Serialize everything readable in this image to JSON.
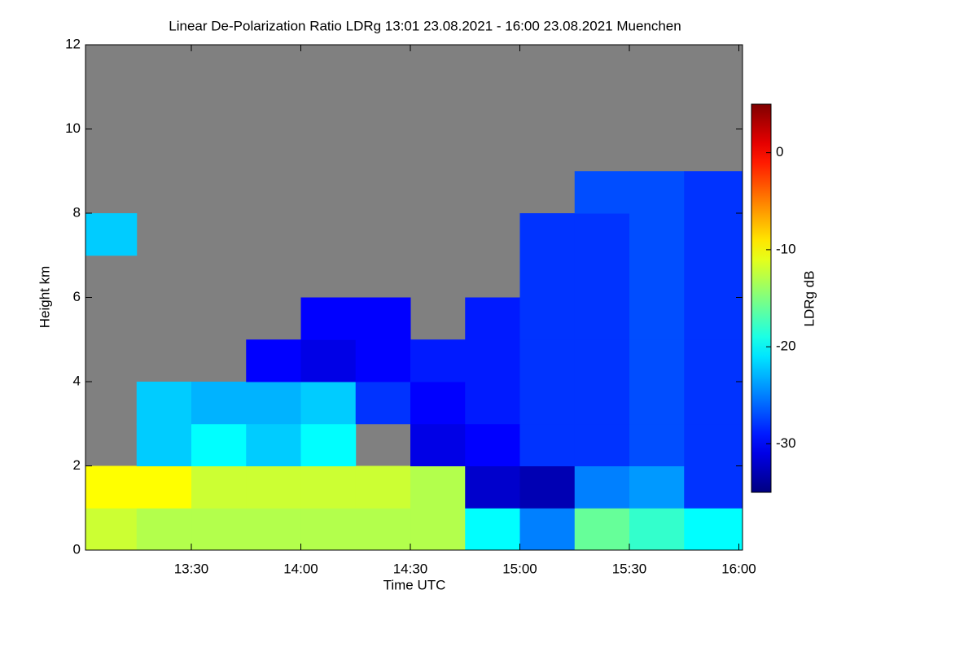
{
  "chart_data": {
    "type": "heatmap",
    "title": "Linear De-Polarization Ratio LDRg   13:01 23.08.2021 - 16:00 23.08.2021 Muenchen",
    "x_label": "Time UTC",
    "y_label": "Height km",
    "colorbar_label": "LDRg dB",
    "colorscale": "jet",
    "missing_color": "#808080",
    "x": [
      13.125,
      13.375,
      13.625,
      13.875,
      14.125,
      14.375,
      14.625,
      14.875,
      15.125,
      15.375,
      15.625,
      15.875
    ],
    "y": [
      0.5,
      1.5,
      2.5,
      3.5,
      4.5,
      5.5,
      6.5,
      7.5,
      8.5,
      9.5,
      10.5,
      11.5
    ],
    "values": [
      [
        -12,
        -13,
        -13,
        -13,
        -13,
        -13,
        -13,
        -20,
        -25,
        -16,
        -18,
        -20
      ],
      [
        -10,
        -10,
        -12,
        -12,
        -12,
        -12,
        -13,
        -32,
        -33,
        -25,
        -24,
        -28
      ],
      [
        null,
        -22,
        -20,
        -22,
        -20,
        null,
        -31,
        -30,
        -28,
        -28,
        -27,
        -28
      ],
      [
        null,
        -22,
        -23,
        -23,
        -22,
        -28,
        -30,
        -29,
        -28,
        -28,
        -27,
        -28
      ],
      [
        null,
        null,
        null,
        -30,
        -31,
        -30,
        -29,
        -29,
        -28,
        -28,
        -27,
        -28
      ],
      [
        null,
        null,
        null,
        null,
        -30,
        -30,
        null,
        -29,
        -28,
        -28,
        -27,
        -28
      ],
      [
        null,
        null,
        null,
        null,
        null,
        null,
        null,
        null,
        -28,
        -28,
        -27,
        -28
      ],
      [
        -22,
        null,
        null,
        null,
        null,
        null,
        null,
        null,
        -28,
        -28,
        -27,
        -28
      ],
      [
        null,
        null,
        null,
        null,
        null,
        null,
        null,
        null,
        null,
        -27,
        -27,
        -28
      ],
      [
        null,
        null,
        null,
        null,
        null,
        null,
        null,
        null,
        null,
        null,
        null,
        null
      ],
      [
        null,
        null,
        null,
        null,
        null,
        null,
        null,
        null,
        null,
        null,
        null,
        null
      ],
      [
        null,
        null,
        null,
        null,
        null,
        null,
        null,
        null,
        null,
        null,
        null,
        null
      ]
    ],
    "xlim": [
      13.0167,
      16.0167
    ],
    "xticks": [
      {
        "value": 13.5,
        "label": "13:30"
      },
      {
        "value": 14,
        "label": "14:00"
      },
      {
        "value": 14.5,
        "label": "14:30"
      },
      {
        "value": 15,
        "label": "15:00"
      },
      {
        "value": 15.5,
        "label": "15:30"
      },
      {
        "value": 16,
        "label": "16:00"
      }
    ],
    "ylim": [
      0,
      12
    ],
    "yticks": [
      0,
      2,
      4,
      6,
      8,
      10,
      12
    ],
    "zlim": [
      -35,
      5
    ],
    "zticks": [
      0,
      -10,
      -20,
      -30
    ]
  }
}
